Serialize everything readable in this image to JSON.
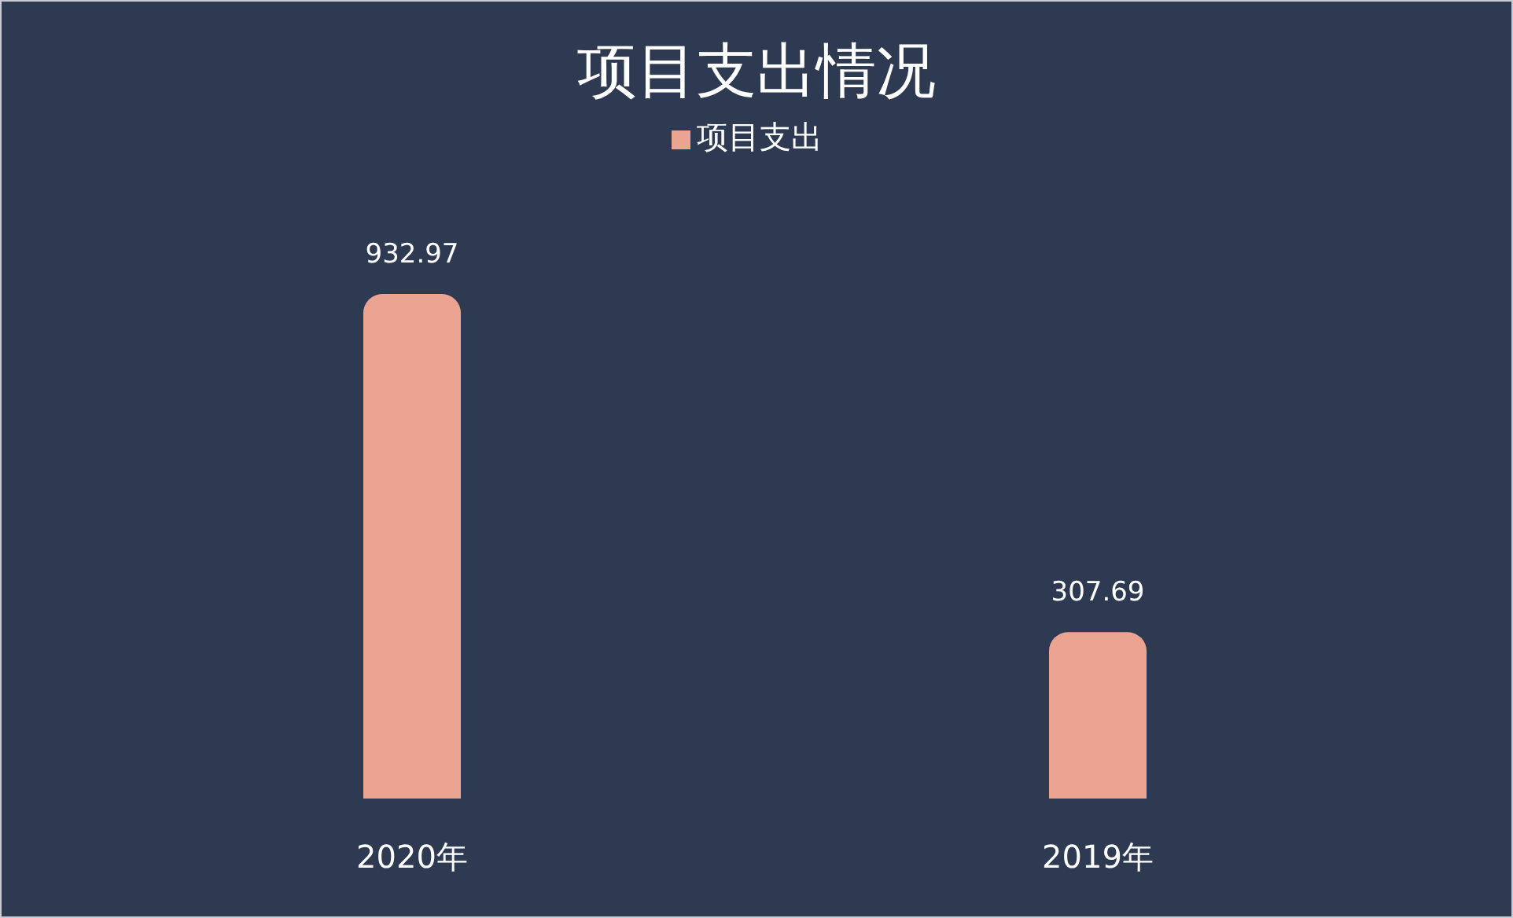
{
  "chart_data": {
    "type": "bar",
    "title": "项目支出情况",
    "categories": [
      "2020年",
      "2019年"
    ],
    "series": [
      {
        "name": "项目支出",
        "color": "#eba492",
        "values": [
          932.97,
          307.69
        ]
      }
    ],
    "data_labels": true,
    "legend": "top",
    "tick_labels": "x"
  }
}
